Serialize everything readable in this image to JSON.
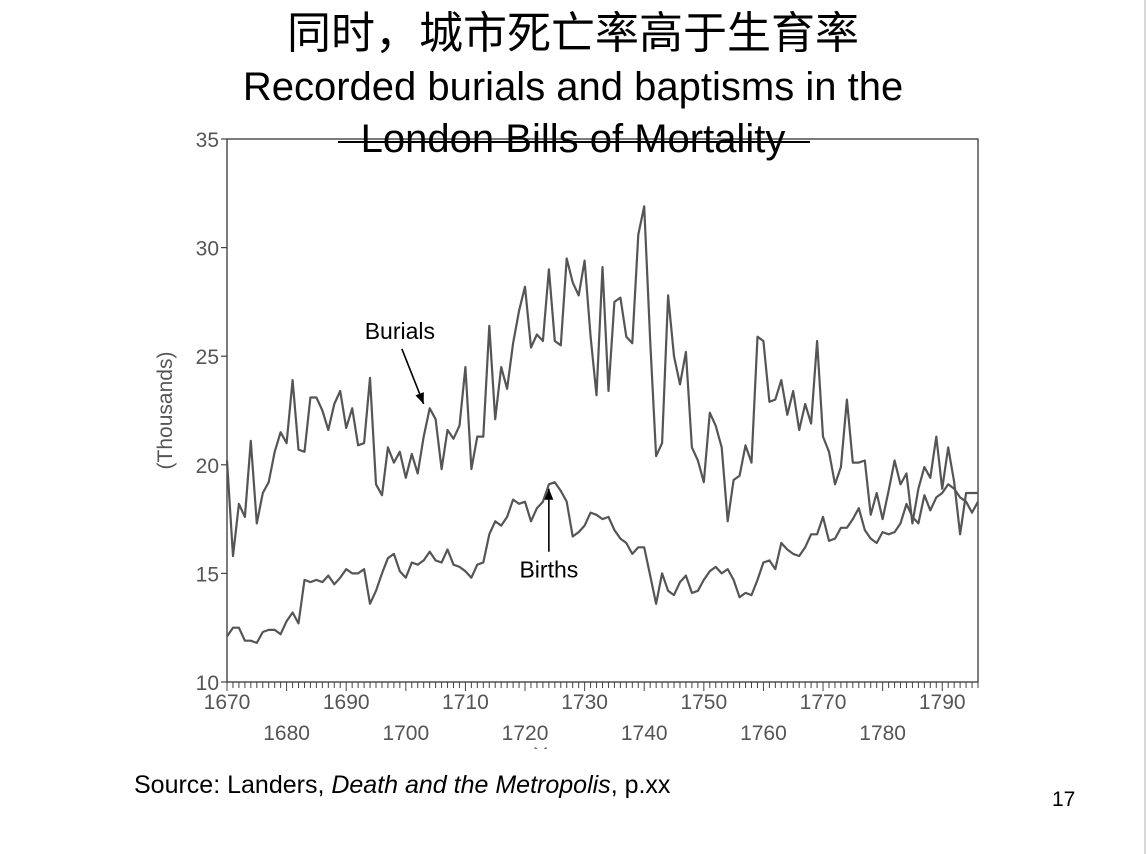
{
  "slide": {
    "title_cn": "同时，城市死亡率高于生育率",
    "title_en_1": "Recorded burials and baptisms in the",
    "title_en_2": "London Bills of Mortality",
    "source_prefix": "Source: Landers, ",
    "source_title": "Death and the Metropolis",
    "source_suffix": ", p.xx",
    "page_number": "17"
  },
  "colors": {
    "line": "#555555",
    "axis": "#444444",
    "text": "#000000"
  },
  "chart_data": {
    "type": "line",
    "ylabel": "(Thousands)",
    "xlabel": "Year",
    "ylim": [
      10,
      35
    ],
    "xlim": [
      1670,
      1796
    ],
    "yticks": [
      "10",
      "15",
      "20",
      "25",
      "30",
      "35"
    ],
    "xticks_upper": [
      "1670",
      "1690",
      "1710",
      "1730",
      "1750",
      "1770",
      "1790"
    ],
    "xticks_lower": [
      "1680",
      "1700",
      "1720",
      "1740",
      "1760",
      "1780"
    ],
    "x": [
      1670,
      1671,
      1672,
      1673,
      1674,
      1675,
      1676,
      1677,
      1678,
      1679,
      1680,
      1681,
      1682,
      1683,
      1684,
      1685,
      1686,
      1687,
      1688,
      1689,
      1690,
      1691,
      1692,
      1693,
      1694,
      1695,
      1696,
      1697,
      1698,
      1699,
      1700,
      1701,
      1702,
      1703,
      1704,
      1705,
      1706,
      1707,
      1708,
      1709,
      1710,
      1711,
      1712,
      1713,
      1714,
      1715,
      1716,
      1717,
      1718,
      1719,
      1720,
      1721,
      1722,
      1723,
      1724,
      1725,
      1726,
      1727,
      1728,
      1729,
      1730,
      1731,
      1732,
      1733,
      1734,
      1735,
      1736,
      1737,
      1738,
      1739,
      1740,
      1741,
      1742,
      1743,
      1744,
      1745,
      1746,
      1747,
      1748,
      1749,
      1750,
      1751,
      1752,
      1753,
      1754,
      1755,
      1756,
      1757,
      1758,
      1759,
      1760,
      1761,
      1762,
      1763,
      1764,
      1765,
      1766,
      1767,
      1768,
      1769,
      1770,
      1771,
      1772,
      1773,
      1774,
      1775,
      1776,
      1777,
      1778,
      1779,
      1780,
      1781,
      1782,
      1783,
      1784,
      1785,
      1786,
      1787,
      1788,
      1789,
      1790,
      1791,
      1792,
      1793,
      1794,
      1795,
      1796
    ],
    "series": [
      {
        "name": "Burials",
        "values": [
          20.2,
          15.8,
          18.2,
          17.6,
          21.1,
          17.3,
          18.7,
          19.2,
          20.6,
          21.5,
          21.0,
          23.9,
          20.7,
          20.6,
          23.1,
          23.1,
          22.5,
          21.6,
          22.8,
          23.4,
          21.7,
          22.6,
          20.9,
          21.0,
          24.0,
          19.1,
          18.6,
          20.8,
          20.1,
          20.6,
          19.4,
          20.5,
          19.6,
          21.3,
          22.6,
          22.1,
          19.8,
          21.6,
          21.2,
          21.8,
          24.5,
          19.8,
          21.3,
          21.3,
          26.4,
          22.1,
          24.5,
          23.5,
          25.6,
          27.1,
          28.2,
          25.4,
          26.0,
          25.7,
          29.0,
          25.7,
          25.5,
          29.5,
          28.4,
          27.8,
          29.4,
          25.9,
          23.2,
          29.1,
          23.4,
          27.5,
          27.7,
          25.9,
          25.6,
          30.6,
          31.9,
          25.7,
          20.4,
          21.0,
          27.8,
          25.0,
          23.7,
          25.2,
          20.8,
          20.2,
          19.2,
          22.4,
          21.8,
          20.8,
          17.4,
          19.3,
          19.5,
          20.9,
          20.1,
          25.9,
          25.7,
          22.9,
          23.0,
          23.9,
          22.3,
          23.4,
          21.6,
          22.8,
          21.9,
          25.7,
          21.3,
          20.6,
          19.1,
          19.9,
          23.0,
          20.1,
          20.1,
          20.2,
          17.7,
          18.7,
          17.5,
          18.8,
          20.2,
          19.1,
          19.6,
          17.3,
          18.9,
          19.9,
          19.4,
          21.3,
          18.9,
          20.8,
          19.2,
          16.8,
          18.7,
          18.7,
          18.7
        ]
      },
      {
        "name": "Births",
        "values": [
          12.1,
          12.5,
          12.5,
          11.9,
          11.9,
          11.8,
          12.3,
          12.4,
          12.4,
          12.2,
          12.8,
          13.2,
          12.7,
          14.7,
          14.6,
          14.7,
          14.6,
          14.9,
          14.5,
          14.8,
          15.2,
          15.0,
          15.0,
          15.2,
          13.6,
          14.2,
          15.0,
          15.7,
          15.9,
          15.1,
          14.8,
          15.5,
          15.4,
          15.6,
          16.0,
          15.6,
          15.5,
          16.1,
          15.4,
          15.3,
          15.1,
          14.8,
          15.4,
          15.5,
          16.8,
          17.4,
          17.2,
          17.6,
          18.4,
          18.2,
          18.3,
          17.4,
          18.0,
          18.3,
          19.1,
          19.2,
          18.8,
          18.3,
          16.7,
          16.9,
          17.2,
          17.8,
          17.7,
          17.5,
          17.6,
          17.0,
          16.6,
          16.4,
          15.9,
          16.2,
          16.2,
          14.9,
          13.6,
          15.0,
          14.2,
          14.0,
          14.6,
          14.9,
          14.1,
          14.2,
          14.7,
          15.1,
          15.3,
          15.0,
          15.2,
          14.7,
          13.9,
          14.1,
          14.0,
          14.7,
          15.5,
          15.6,
          15.2,
          16.4,
          16.1,
          15.9,
          15.8,
          16.2,
          16.8,
          16.8,
          17.6,
          16.5,
          16.6,
          17.1,
          17.1,
          17.5,
          18.0,
          17.0,
          16.6,
          16.4,
          16.9,
          16.8,
          16.9,
          17.3,
          18.2,
          17.6,
          17.3,
          18.6,
          17.9,
          18.5,
          18.7,
          19.1,
          18.9,
          18.5,
          18.3,
          17.8,
          18.3
        ]
      }
    ],
    "annotations": [
      {
        "text": "Burials",
        "x": 1703,
        "y": 22.8,
        "label_x": 1699,
        "label_y": 25.8
      },
      {
        "text": "Births",
        "x": 1724,
        "y": 18.9,
        "label_x": 1724,
        "label_y": 14.8
      }
    ]
  }
}
